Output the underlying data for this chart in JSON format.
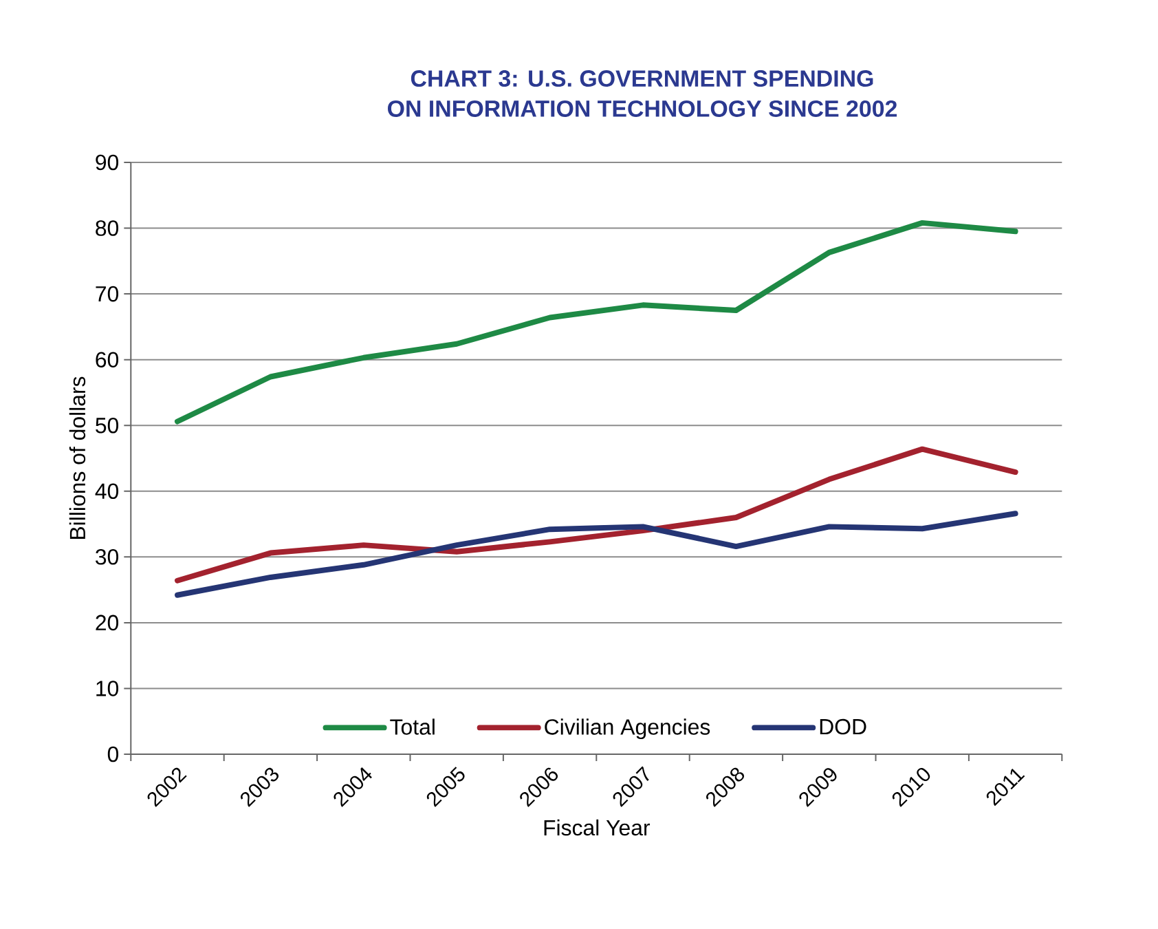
{
  "chart_data": {
    "type": "line",
    "title": "CHART 3: U.S. GOVERNMENT SPENDING\nON INFORMATION TECHNOLOGY SINCE 2002",
    "xlabel": "Fiscal Year",
    "ylabel": "Billions of dollars",
    "categories": [
      "2002",
      "2003",
      "2004",
      "2005",
      "2006",
      "2007",
      "2008",
      "2009",
      "2010",
      "2011"
    ],
    "series": [
      {
        "name": "Total",
        "color": "#1e8a45",
        "values": [
          50.6,
          57.4,
          60.3,
          62.4,
          66.4,
          68.3,
          67.5,
          76.3,
          80.8,
          79.5
        ]
      },
      {
        "name": "Civilian Agencies",
        "color": "#a3222e",
        "values": [
          26.4,
          30.6,
          31.8,
          30.8,
          32.3,
          34.0,
          36.0,
          41.8,
          46.4,
          42.9
        ]
      },
      {
        "name": "DOD",
        "color": "#253574",
        "values": [
          24.2,
          26.9,
          28.8,
          31.8,
          34.2,
          34.6,
          31.6,
          34.6,
          34.3,
          36.6
        ]
      }
    ],
    "ylim": [
      0,
      90
    ],
    "yticks": [
      0,
      10,
      20,
      30,
      40,
      50,
      60,
      70,
      80,
      90
    ],
    "grid": "y",
    "legend": "bottom",
    "marker": "none",
    "line_style": "solid"
  }
}
